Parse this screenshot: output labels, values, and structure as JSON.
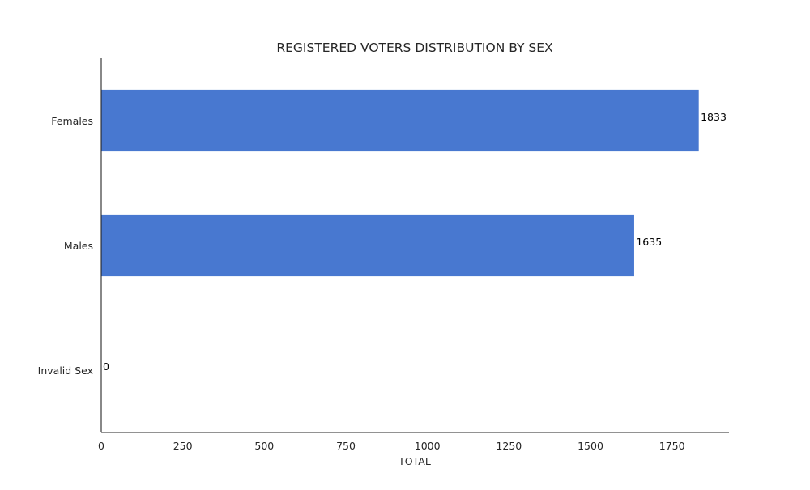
{
  "chart_data": {
    "type": "bar",
    "orientation": "horizontal",
    "title": "REGISTERED VOTERS DISTRIBUTION BY SEX",
    "xlabel": "TOTAL",
    "ylabel": "",
    "categories": [
      "Females",
      "Males",
      "Invalid Sex"
    ],
    "values": [
      1833,
      1635,
      0
    ],
    "data_labels": [
      "1833",
      "1635",
      "0"
    ],
    "xlim": [
      0,
      1924.65
    ],
    "xticks": [
      0,
      250,
      500,
      750,
      1000,
      1250,
      1500,
      1750
    ],
    "xtick_labels": [
      "0",
      "250",
      "500",
      "750",
      "1000",
      "1250",
      "1500",
      "1750"
    ],
    "bar_color": "#4878d0",
    "grid": false,
    "legend": "none"
  }
}
